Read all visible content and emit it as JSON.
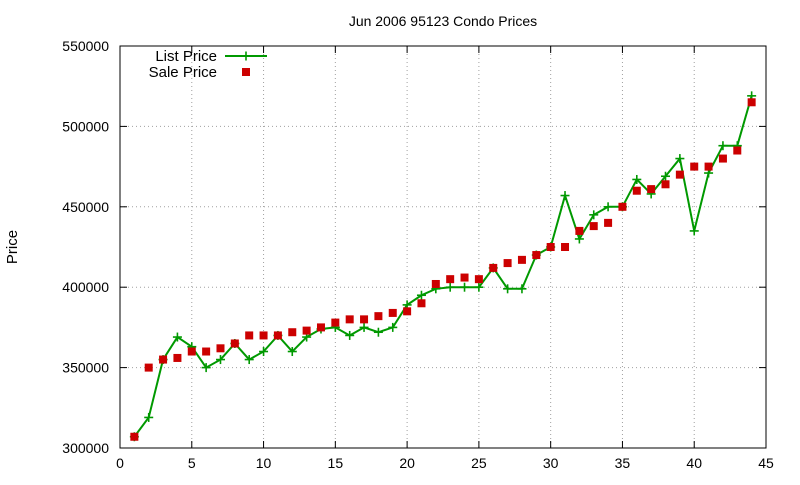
{
  "chart_data": {
    "type": "line",
    "title": "Jun 2006 95123 Condo Prices",
    "xlabel": "",
    "ylabel": "Price",
    "xlim": [
      0,
      45
    ],
    "ylim": [
      300000,
      550000
    ],
    "x_ticks": [
      0,
      5,
      10,
      15,
      20,
      25,
      30,
      35,
      40,
      45
    ],
    "y_ticks": [
      300000,
      350000,
      400000,
      450000,
      500000,
      550000
    ],
    "x_tick_labels": [
      "0",
      "5",
      "10",
      "15",
      "20",
      "25",
      "30",
      "35",
      "40",
      "45"
    ],
    "y_tick_labels": [
      "300000",
      "350000",
      "400000",
      "450000",
      "500000",
      "550000"
    ],
    "grid": true,
    "legend_position": "top-left",
    "series": [
      {
        "name": "List Price",
        "style": "line-with-plus-markers",
        "color": "#009900",
        "x": [
          1,
          2,
          3,
          4,
          5,
          6,
          7,
          8,
          9,
          10,
          11,
          12,
          13,
          14,
          15,
          16,
          17,
          18,
          19,
          20,
          21,
          22,
          23,
          24,
          25,
          26,
          27,
          28,
          29,
          30,
          31,
          32,
          33,
          34,
          35,
          36,
          37,
          38,
          39,
          40,
          41,
          42,
          43,
          44
        ],
        "y": [
          307000,
          319000,
          355000,
          369000,
          363000,
          350000,
          355000,
          365000,
          355000,
          360000,
          370000,
          360000,
          369000,
          374000,
          375000,
          370000,
          375000,
          372000,
          375000,
          389000,
          395000,
          399000,
          400000,
          400000,
          400000,
          412000,
          399000,
          399000,
          420000,
          425000,
          457000,
          430000,
          445000,
          450000,
          450000,
          467000,
          458000,
          469000,
          480000,
          435000,
          471000,
          488000,
          488000,
          519000
        ]
      },
      {
        "name": "Sale Price",
        "style": "square-markers",
        "color": "#cc0000",
        "x": [
          1,
          2,
          3,
          4,
          5,
          6,
          7,
          8,
          9,
          10,
          11,
          12,
          13,
          14,
          15,
          16,
          17,
          18,
          19,
          20,
          21,
          22,
          23,
          24,
          25,
          26,
          27,
          28,
          29,
          30,
          31,
          32,
          33,
          34,
          35,
          36,
          37,
          38,
          39,
          40,
          41,
          42,
          43,
          44
        ],
        "y": [
          307000,
          350000,
          355000,
          356000,
          360000,
          360000,
          362000,
          365000,
          370000,
          370000,
          370000,
          372000,
          373000,
          375000,
          378000,
          380000,
          380000,
          382000,
          384000,
          385000,
          390000,
          402000,
          405000,
          406000,
          405000,
          412000,
          415000,
          417000,
          420000,
          425000,
          425000,
          435000,
          438000,
          440000,
          450000,
          460000,
          461000,
          464000,
          470000,
          475000,
          475000,
          480000,
          485000,
          515000
        ]
      }
    ]
  }
}
